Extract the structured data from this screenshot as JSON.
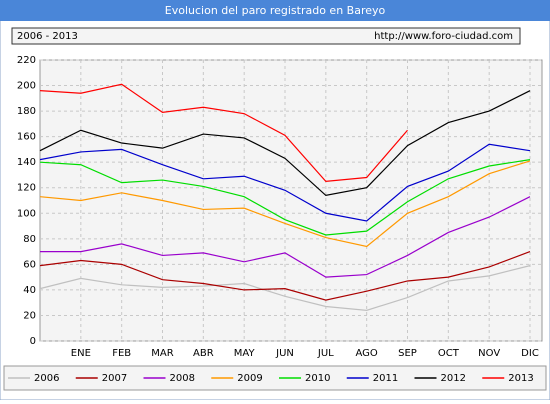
{
  "chart_data": {
    "type": "line",
    "title": "Evolucion del paro registrado en Bareyo",
    "subtitle": "2006 - 2013",
    "source": "http://www.foro-ciudad.com",
    "categories": [
      null,
      "ENE",
      "FEB",
      "MAR",
      "ABR",
      "MAY",
      "JUN",
      "JUL",
      "AGO",
      "SEP",
      "OCT",
      "NOV",
      "DIC"
    ],
    "ylim": [
      0,
      220
    ],
    "yticks": [
      0,
      20,
      40,
      60,
      80,
      100,
      120,
      140,
      160,
      180,
      200,
      220
    ],
    "grid": true,
    "series": [
      {
        "name": "2006",
        "color": "#c0c0c0",
        "values": [
          41,
          49,
          44,
          42,
          43,
          45,
          35,
          27,
          24,
          34,
          47,
          51,
          59
        ]
      },
      {
        "name": "2007",
        "color": "#aa0000",
        "values": [
          59,
          63,
          60,
          48,
          45,
          40,
          41,
          32,
          39,
          47,
          50,
          58,
          70
        ]
      },
      {
        "name": "2008",
        "color": "#9900cc",
        "values": [
          70,
          70,
          76,
          67,
          69,
          62,
          69,
          50,
          52,
          67,
          85,
          97,
          113
        ]
      },
      {
        "name": "2009",
        "color": "#ff9900",
        "values": [
          113,
          110,
          116,
          110,
          103,
          104,
          92,
          81,
          74,
          100,
          113,
          131,
          141
        ]
      },
      {
        "name": "2010",
        "color": "#00dd00",
        "values": [
          140,
          138,
          124,
          126,
          121,
          113,
          95,
          83,
          86,
          109,
          127,
          137,
          142
        ]
      },
      {
        "name": "2011",
        "color": "#0000cc",
        "values": [
          142,
          148,
          150,
          138,
          127,
          129,
          118,
          100,
          94,
          121,
          133,
          154,
          149
        ]
      },
      {
        "name": "2012",
        "color": "#000000",
        "values": [
          149,
          165,
          155,
          151,
          162,
          159,
          143,
          114,
          120,
          153,
          171,
          180,
          196
        ]
      },
      {
        "name": "2013",
        "color": "#ff0000",
        "values": [
          196,
          194,
          201,
          179,
          183,
          178,
          161,
          125,
          128,
          165,
          null,
          null,
          null
        ]
      }
    ]
  }
}
